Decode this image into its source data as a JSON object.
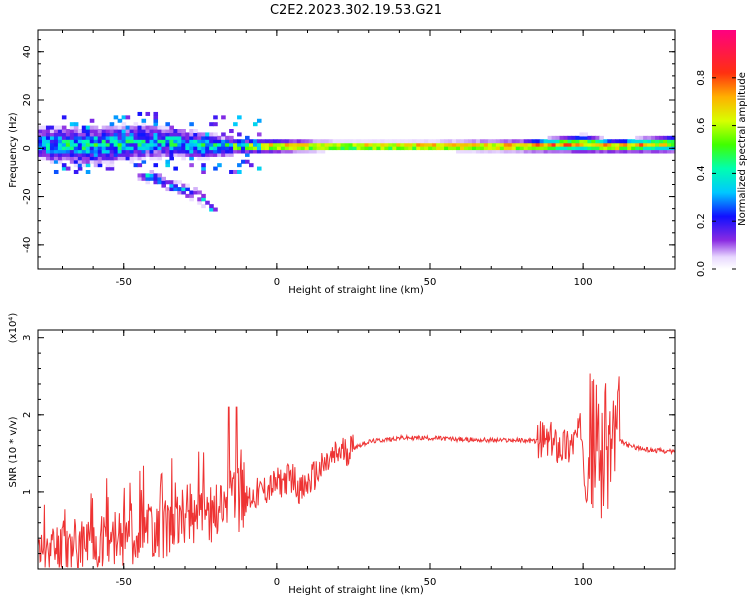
{
  "title": "C2E2.2023.302.19.53.G21",
  "chart_data": [
    {
      "type": "heatmap",
      "xlabel": "Height of straight line (km)",
      "ylabel": "Frequency (Hz)",
      "xlim": [
        -78,
        130
      ],
      "ylim": [
        -50,
        49
      ],
      "x_ticks": [
        -50,
        0,
        50,
        100
      ],
      "y_ticks": [
        -40,
        -20,
        0,
        20,
        40
      ],
      "grid": false,
      "ridge": {
        "description_points": [
          {
            "x": -78,
            "y_center": 2,
            "half_width": 6,
            "amp": 0.35
          },
          {
            "x": -60,
            "y_center": 1,
            "half_width": 7,
            "amp": 0.4
          },
          {
            "x": -40,
            "y_center": 3,
            "half_width": 6,
            "amp": 0.35
          },
          {
            "x": -20,
            "y_center": 1,
            "half_width": 4,
            "amp": 0.4
          },
          {
            "x": -10,
            "y_center": 1,
            "half_width": 2.5,
            "amp": 0.5
          },
          {
            "x": 0,
            "y_center": 1,
            "half_width": 2,
            "amp": 0.8
          },
          {
            "x": 20,
            "y_center": 1,
            "half_width": 1.5,
            "amp": 0.8
          },
          {
            "x": 50,
            "y_center": 1,
            "half_width": 1.5,
            "amp": 0.9
          },
          {
            "x": 80,
            "y_center": 1,
            "half_width": 1.8,
            "amp": 0.8
          },
          {
            "x": 100,
            "y_center": 2,
            "half_width": 3,
            "amp": 0.7
          },
          {
            "x": 110,
            "y_center": 1,
            "half_width": 2,
            "amp": 0.8
          },
          {
            "x": 130,
            "y_center": 2,
            "half_width": 3,
            "amp": 0.6
          }
        ],
        "branches": [
          {
            "x": [
              -45,
              -35,
              -25,
              -20
            ],
            "y": [
              -10,
              -15,
              -20,
              -27
            ],
            "amp": 0.35
          }
        ]
      },
      "colorbar": {
        "label": "Normalized spectral amplitude",
        "range": [
          0.0,
          1.0
        ],
        "ticks": [
          0.0,
          0.2,
          0.4,
          0.6,
          0.8
        ],
        "tick_labels": [
          "0.0",
          "0.2",
          "0.4",
          "0.6",
          "0.8"
        ]
      }
    },
    {
      "type": "line",
      "xlabel": "Height of straight line (km)",
      "ylabel": "SNR (10 * v/v)",
      "y_multiplier": "(x10⁴)",
      "xlim": [
        -78,
        130
      ],
      "ylim": [
        0,
        3.1
      ],
      "x_ticks": [
        -50,
        0,
        50,
        100
      ],
      "y_ticks": [
        1,
        2,
        3
      ],
      "series": [
        {
          "color": "#ee3333",
          "x": [
            -78,
            -70,
            -60,
            -50,
            -40,
            -30,
            -20,
            -15,
            -10,
            0,
            5,
            8,
            12,
            20,
            30,
            40,
            50,
            60,
            70,
            80,
            88,
            95,
            100,
            104,
            107,
            110,
            115,
            120,
            130
          ],
          "y": [
            0.2,
            0.3,
            0.35,
            0.4,
            0.5,
            0.6,
            0.75,
            0.85,
            0.9,
            1.1,
            1.2,
            1.0,
            1.2,
            1.5,
            1.65,
            1.7,
            1.7,
            1.68,
            1.67,
            1.67,
            1.65,
            1.6,
            1.8,
            1.6,
            1.5,
            1.7,
            1.6,
            1.55,
            1.52
          ]
        }
      ]
    }
  ],
  "colors": {
    "line": "#ee3333"
  }
}
